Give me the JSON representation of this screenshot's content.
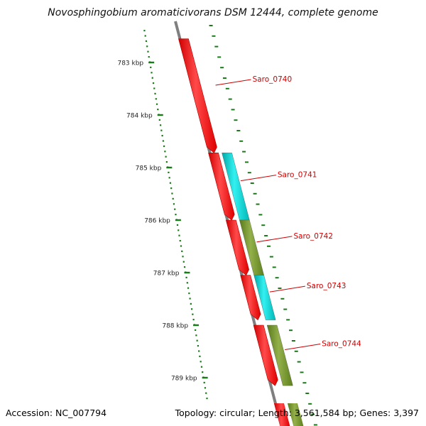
{
  "title": "Novosphingobium aromaticivorans DSM 12444, complete genome",
  "colors": {
    "tick": "#1a7a1a",
    "backbone": "#7f7f7f",
    "label": "#cc0000",
    "gene_red": "#ff0000",
    "gene_cyan": "#00cccc",
    "gene_olive": "#6b8e23"
  },
  "ticks": [
    {
      "label": "783 kbp",
      "pos": 783
    },
    {
      "label": "784 kbp",
      "pos": 784
    },
    {
      "label": "785 kbp",
      "pos": 785
    },
    {
      "label": "786 kbp",
      "pos": 786
    },
    {
      "label": "787 kbp",
      "pos": 787
    },
    {
      "label": "788 kbp",
      "pos": 788
    },
    {
      "label": "789 kbp",
      "pos": 789
    }
  ],
  "genes": [
    {
      "name": "Saro_0740",
      "start": 782.55,
      "end": 784.72,
      "color": "red"
    },
    {
      "name": "Saro_0741",
      "start": 784.72,
      "end": 786.0,
      "color": "cyan"
    },
    {
      "name": "Saro_0742",
      "start": 786.0,
      "end": 787.05,
      "color": "olive"
    },
    {
      "name": "Saro_0743",
      "start": 787.05,
      "end": 787.9,
      "color": "cyan"
    },
    {
      "name": "Saro_0744",
      "start": 788.0,
      "end": 789.15,
      "color": "olive"
    }
  ],
  "footer": {
    "accession": "Accession: NC_007794",
    "topology": "Topology: circular; Length: 3,561,584 bp; Genes: 3,397"
  }
}
